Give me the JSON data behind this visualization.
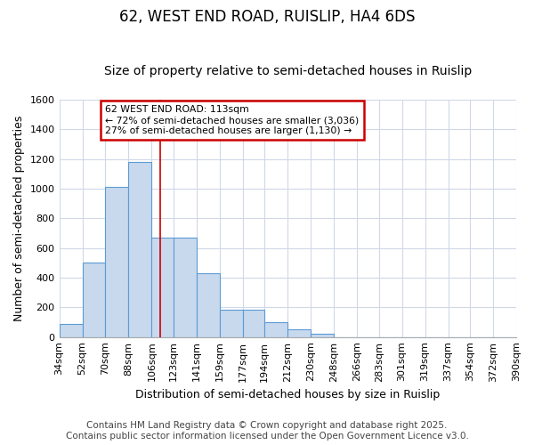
{
  "title": "62, WEST END ROAD, RUISLIP, HA4 6DS",
  "subtitle": "Size of property relative to semi-detached houses in Ruislip",
  "xlabel": "Distribution of semi-detached houses by size in Ruislip",
  "ylabel": "Number of semi-detached properties",
  "bar_edges": [
    34,
    52,
    70,
    88,
    106,
    123,
    141,
    159,
    177,
    194,
    212,
    230,
    248,
    266,
    283,
    301,
    319,
    337,
    354,
    372,
    390
  ],
  "bar_heights": [
    90,
    500,
    1010,
    1180,
    670,
    670,
    430,
    185,
    185,
    100,
    55,
    25,
    0,
    0,
    0,
    0,
    0,
    0,
    0,
    0
  ],
  "bar_color": "#c8d9ed",
  "bar_edgecolor": "#5b9bd5",
  "vline_x": 113,
  "vline_color": "#cc0000",
  "ylim": [
    0,
    1600
  ],
  "yticks": [
    0,
    200,
    400,
    600,
    800,
    1000,
    1200,
    1400,
    1600
  ],
  "annotation_title": "62 WEST END ROAD: 113sqm",
  "annotation_line1": "← 72% of semi-detached houses are smaller (3,036)",
  "annotation_line2": "27% of semi-detached houses are larger (1,130) →",
  "annotation_box_color": "#cc0000",
  "footer_line1": "Contains HM Land Registry data © Crown copyright and database right 2025.",
  "footer_line2": "Contains public sector information licensed under the Open Government Licence v3.0.",
  "bg_color": "#ffffff",
  "grid_color": "#d0d8e8",
  "title_fontsize": 12,
  "subtitle_fontsize": 10,
  "axis_fontsize": 9,
  "tick_fontsize": 8,
  "footer_fontsize": 7.5
}
